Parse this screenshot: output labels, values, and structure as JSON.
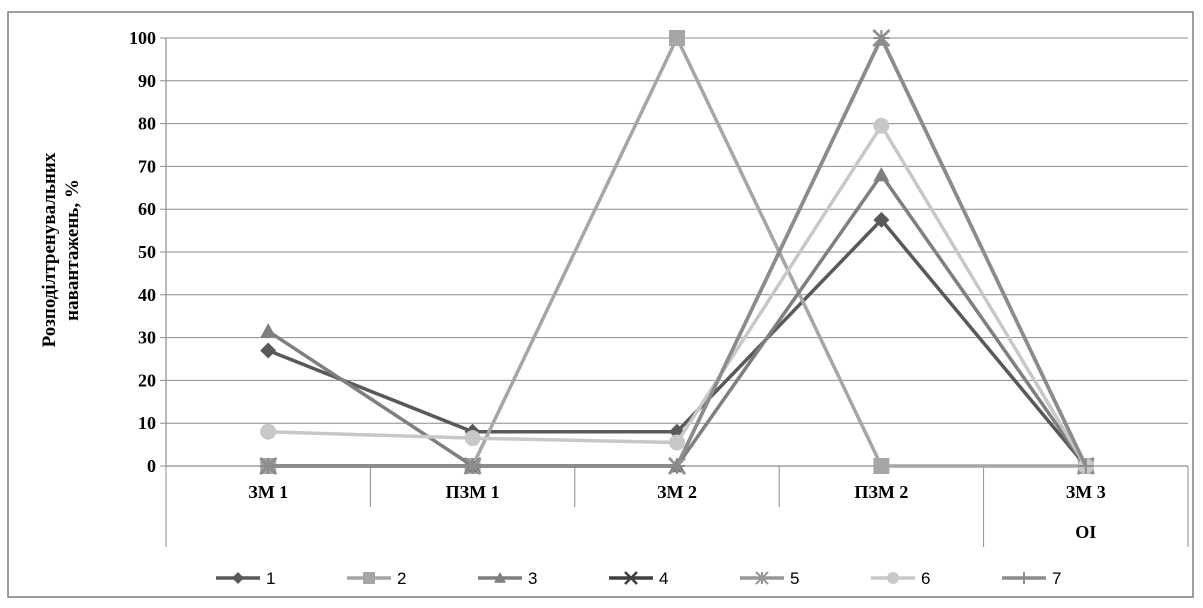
{
  "chart_data": {
    "type": "line",
    "ylabel_line1": "Розподілтренувальних",
    "ylabel_line2": "навантажень, %",
    "ylim": [
      0,
      100
    ],
    "yticks": [
      "0",
      "10",
      "20",
      "30",
      "40",
      "50",
      "60",
      "70",
      "80",
      "90",
      "100"
    ],
    "categories": [
      "ЗМ 1",
      "ПЗМ 1",
      "ЗМ 2",
      "ПЗМ 2",
      "ЗМ 3"
    ],
    "secondary_category_label": "ОІ",
    "grid": true,
    "legend_position": "bottom",
    "series": [
      {
        "name": "1",
        "marker": "diamond",
        "color": "#595959",
        "values": [
          27,
          8,
          8,
          57.5,
          0
        ]
      },
      {
        "name": "2",
        "marker": "square",
        "color": "#a6a6a6",
        "values": [
          0,
          0,
          100,
          0,
          0
        ]
      },
      {
        "name": "3",
        "marker": "triangle",
        "color": "#7f7f7f",
        "values": [
          31.5,
          0,
          0,
          68,
          0
        ]
      },
      {
        "name": "4",
        "marker": "x",
        "color": "#404040",
        "values": [
          0,
          0,
          0,
          100,
          0
        ]
      },
      {
        "name": "5",
        "marker": "star",
        "color": "#969696",
        "values": [
          0,
          0,
          0,
          100,
          0
        ]
      },
      {
        "name": "6",
        "marker": "circle",
        "color": "#c8c8c8",
        "values": [
          8,
          6.5,
          5.5,
          79.5,
          0
        ]
      },
      {
        "name": "7",
        "marker": "plus",
        "color": "#8c8c8c",
        "values": [
          0,
          0,
          0,
          100,
          0
        ]
      }
    ]
  }
}
